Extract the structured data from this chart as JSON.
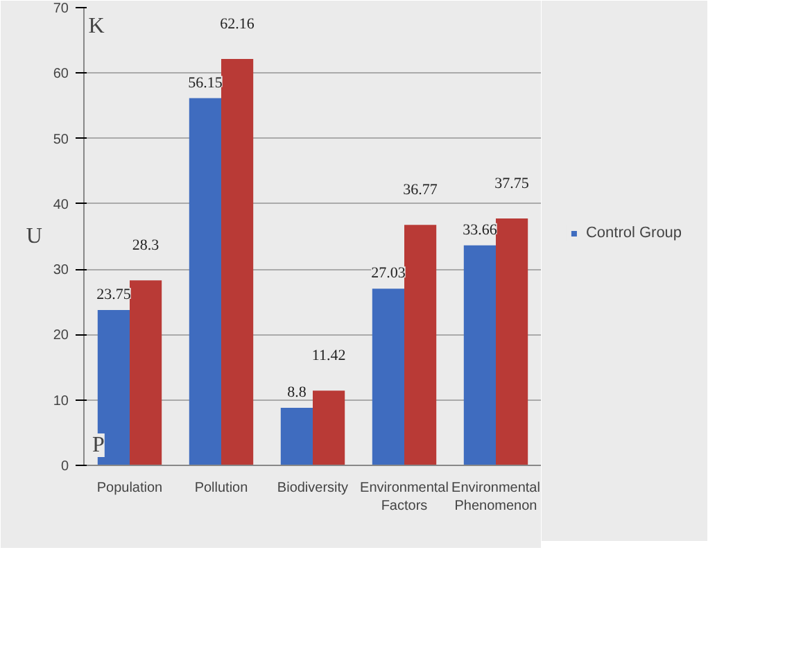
{
  "chart_data": {
    "type": "bar",
    "ylabel": "U",
    "annotations": [
      "K",
      "P"
    ],
    "categories": [
      "Population",
      "Pollution",
      "Biodiversity",
      "Environmental Factors",
      "Environmental Phenomenon"
    ],
    "series": [
      {
        "name": "Control Group",
        "color": "#3f6cbf",
        "values": [
          23.75,
          56.15,
          8.8,
          27.03,
          33.66
        ]
      },
      {
        "color": "#b93a36",
        "values": [
          28.3,
          62.16,
          11.42,
          36.77,
          37.75
        ]
      }
    ],
    "ylim": [
      0,
      70
    ],
    "yticks": [
      0,
      10,
      20,
      30,
      40,
      50,
      60,
      70
    ],
    "data_labels": true,
    "grid": "y",
    "legend": "right"
  }
}
